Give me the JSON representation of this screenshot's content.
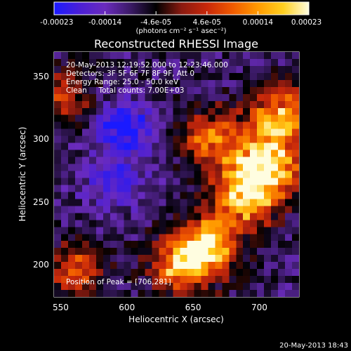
{
  "chart_data": {
    "type": "heatmap",
    "title": "Reconstructed RHESSI Image",
    "xlabel": "Heliocentric X (arcsec)",
    "ylabel": "Heliocentric Y (arcsec)",
    "xlim": [
      545,
      730
    ],
    "ylim": [
      175,
      370
    ],
    "x_ticks": [
      550,
      600,
      650,
      700
    ],
    "y_ticks": [
      200,
      250,
      300,
      350
    ],
    "colorbar": {
      "min": -0.00023,
      "max": 0.00023,
      "tick_labels": [
        "-0.00023",
        "-0.00014",
        "-4.6e-05",
        "4.6e-05",
        "0.00014",
        "0.00023"
      ],
      "unit_label": "(photons cm⁻² s⁻¹ asec⁻²)",
      "colors": [
        "#1a1aff",
        "#4b1fd6",
        "#6a2bbd",
        "#3b1a66",
        "#000000",
        "#8a1a10",
        "#c8280a",
        "#f05a00",
        "#ff9a00",
        "#ffd020",
        "#fffde0"
      ]
    },
    "annotations": {
      "time_range": "20-May-2013 12:19:52.000 to 12:23:46.000",
      "detectors": "Detectors: 3F 5F 6F 7F 8F 9F, Att 0",
      "energy_range": "Energy Range: 25.0 - 50.0 keV",
      "method_counts": "Clean     Total counts: 7.00E+03",
      "peak": "Position of Peak = [706,281]"
    },
    "intensity_regions": [
      {
        "x": 598,
        "y": 310,
        "value": -0.00023
      },
      {
        "x": 590,
        "y": 265,
        "value": -0.00018
      },
      {
        "x": 620,
        "y": 335,
        "value": -8e-05
      },
      {
        "x": 706,
        "y": 281,
        "value": 0.00023
      },
      {
        "x": 690,
        "y": 255,
        "value": 0.0002
      },
      {
        "x": 660,
        "y": 215,
        "value": 0.00019
      },
      {
        "x": 640,
        "y": 200,
        "value": 0.00012
      },
      {
        "x": 715,
        "y": 320,
        "value": 0.00014
      },
      {
        "x": 665,
        "y": 300,
        "value": 0.0001
      },
      {
        "x": 560,
        "y": 195,
        "value": 8e-05
      },
      {
        "x": 550,
        "y": 335,
        "value": 5e-05
      }
    ]
  },
  "footer_date": "20-May-2013 18:43"
}
